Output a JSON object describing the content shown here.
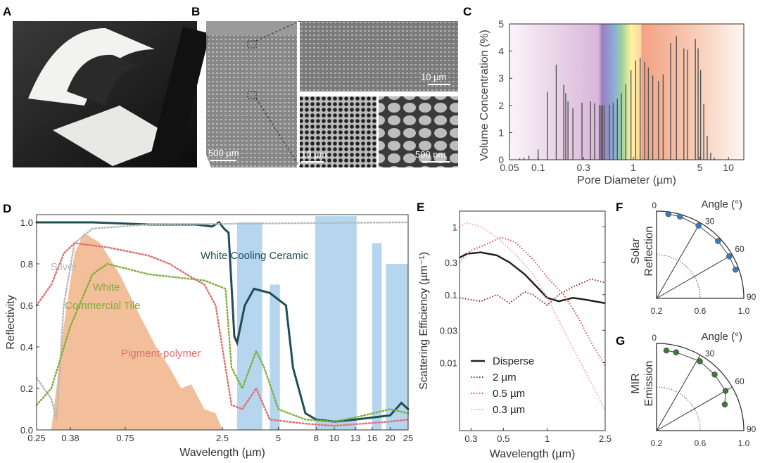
{
  "panels": {
    "A": {
      "label": "A"
    },
    "B": {
      "label": "B",
      "scalebars": [
        "500 µm",
        "10 µm",
        "10 µm",
        "500 nm"
      ]
    },
    "C": {
      "label": "C"
    },
    "D": {
      "label": "D"
    },
    "E": {
      "label": "E"
    },
    "F": {
      "label": "F"
    },
    "G": {
      "label": "G"
    }
  },
  "chart_data": [
    {
      "id": "C",
      "type": "bar",
      "xlabel": "Pore Diameter (µm)",
      "ylabel": "Volume Concentration (%)",
      "xscale": "log",
      "xlim": [
        0.05,
        14.5
      ],
      "ylim": [
        0,
        5
      ],
      "xticks": [
        "0.05",
        "0.1",
        "0.3",
        "1",
        "5",
        "10"
      ],
      "xtick_values": [
        0.05,
        0.1,
        0.3,
        1,
        5,
        10
      ],
      "yticks": [
        "0",
        "1",
        "2",
        "3",
        "4",
        "5"
      ],
      "background": "visible-spectrum gradient (violet to red) with UV and IR shading",
      "x": [
        0.064,
        0.071,
        0.08,
        0.1,
        0.125,
        0.155,
        0.186,
        0.195,
        0.206,
        0.232,
        0.289,
        0.356,
        0.392,
        0.441,
        0.459,
        0.475,
        0.494,
        0.56,
        0.615,
        0.68,
        0.75,
        0.835,
        0.945,
        1.06,
        1.18,
        1.32,
        1.44,
        1.6,
        1.84,
        2.06,
        2.47,
        2.84,
        3.4,
        3.72,
        4.49,
        4.8,
        5.1,
        5.5,
        5.98,
        6.5,
        7.1
      ],
      "values": [
        0.05,
        0.08,
        0.15,
        0.38,
        2.5,
        3.5,
        2.75,
        2.45,
        2.15,
        1.9,
        2.1,
        2.15,
        2.08,
        2.02,
        2.0,
        2.0,
        2.0,
        2.02,
        2.1,
        2.25,
        2.45,
        2.78,
        3.3,
        3.65,
        3.75,
        3.6,
        3.4,
        3.1,
        2.9,
        3.15,
        4.3,
        4.55,
        4.1,
        4.05,
        4.45,
        4.1,
        3.3,
        2.05,
        0.87,
        0.25,
        0.08
      ]
    },
    {
      "id": "D",
      "type": "line",
      "xlabel": "Wavelength (µm)",
      "ylabel": "Reflectivity",
      "xscale": "log",
      "xlim": [
        0.25,
        25
      ],
      "ylim": [
        0,
        1.05
      ],
      "xticks": [
        "0.25",
        "0.38",
        "0.75",
        "2.5",
        "5",
        "8",
        "10",
        "13",
        "16",
        "20",
        "25"
      ],
      "xtick_values": [
        0.25,
        0.38,
        0.75,
        2.5,
        5,
        8,
        10,
        13,
        16,
        20,
        25
      ],
      "yticks": [
        "0.0",
        "0.2",
        "0.4",
        "0.6",
        "0.8",
        "1.0"
      ],
      "series": [
        {
          "name": "White Cooling Ceramic",
          "color": "#1f4e55",
          "style": "solid",
          "x": [
            0.25,
            0.5,
            1,
            1.8,
            2.2,
            2.4,
            2.55,
            2.7,
            2.9,
            3.0,
            3.3,
            3.7,
            4.5,
            5.5,
            6,
            7,
            8,
            10,
            13,
            20,
            23,
            25
          ],
          "y": [
            1.0,
            1.0,
            0.99,
            0.99,
            0.98,
            1.0,
            0.97,
            0.95,
            0.45,
            0.42,
            0.6,
            0.68,
            0.66,
            0.6,
            0.3,
            0.08,
            0.05,
            0.04,
            0.05,
            0.07,
            0.13,
            0.1
          ]
        },
        {
          "name": "Silver",
          "color": "#b8b8b8",
          "style": "dotted",
          "x": [
            0.25,
            0.3,
            0.32,
            0.35,
            0.4,
            0.5,
            1,
            25
          ],
          "y": [
            0.25,
            0.15,
            0.05,
            0.6,
            0.9,
            0.97,
            0.99,
            1.0
          ]
        },
        {
          "name": "White Commercial Tile",
          "color": "#7fae3a",
          "style": "dotted",
          "x": [
            0.25,
            0.3,
            0.38,
            0.5,
            0.6,
            1,
            2,
            2.6,
            2.8,
            3.2,
            3.8,
            4.2,
            5,
            7,
            10,
            13,
            20,
            25
          ],
          "y": [
            0.12,
            0.2,
            0.5,
            0.75,
            0.8,
            0.75,
            0.72,
            0.68,
            0.3,
            0.2,
            0.38,
            0.3,
            0.1,
            0.05,
            0.04,
            0.06,
            0.1,
            0.08
          ]
        },
        {
          "name": "Pigment-polymer",
          "color": "#e07070",
          "style": "dotted",
          "x": [
            0.25,
            0.3,
            0.35,
            0.4,
            0.6,
            1,
            1.3,
            1.6,
            2,
            2.3,
            2.6,
            2.8,
            3.2,
            3.8,
            4.5,
            7,
            10,
            20,
            25
          ],
          "y": [
            0.6,
            0.7,
            0.85,
            0.9,
            0.88,
            0.84,
            0.8,
            0.75,
            0.7,
            0.6,
            0.3,
            0.12,
            0.1,
            0.2,
            0.05,
            0.03,
            0.02,
            0.04,
            0.05
          ]
        }
      ],
      "solar_spectrum": {
        "color": "#f0b488",
        "x": [
          0.3,
          0.35,
          0.4,
          0.45,
          0.55,
          0.7,
          0.9,
          1.1,
          1.3,
          1.5,
          1.7,
          2.0,
          2.3,
          2.5
        ],
        "y": [
          0,
          0.5,
          0.85,
          0.95,
          0.9,
          0.75,
          0.55,
          0.4,
          0.3,
          0.2,
          0.22,
          0.1,
          0.08,
          0
        ]
      },
      "atmospheric_window": {
        "color": "#9cc8e8",
        "bands": [
          [
            3.0,
            4.1,
            1.0
          ],
          [
            4.5,
            5.1,
            0.7
          ],
          [
            7.9,
            13.2,
            1.03
          ],
          [
            16,
            18,
            0.9
          ],
          [
            19,
            25,
            0.8
          ]
        ]
      }
    },
    {
      "id": "E",
      "type": "line",
      "xlabel": "Wavelength (µm)",
      "ylabel": "Scattering Efficiency (µm⁻¹)",
      "xscale": "log",
      "yscale": "log",
      "xlim": [
        0.25,
        2.5
      ],
      "ylim": [
        0.001,
        1.7
      ],
      "xticks": [
        "0.3",
        "0.5",
        "1",
        "2.5"
      ],
      "xtick_values": [
        0.3,
        0.5,
        1,
        2.5
      ],
      "yticks": [
        "0.01",
        "0.03",
        "0.1",
        "0.3",
        "1"
      ],
      "ytick_values": [
        0.01,
        0.03,
        0.1,
        0.3,
        1
      ],
      "legend": "bottom-left",
      "series": [
        {
          "name": "Disperse",
          "color": "#222222",
          "style": "solid",
          "x": [
            0.25,
            0.28,
            0.35,
            0.45,
            0.55,
            0.7,
            0.85,
            1.0,
            1.2,
            1.5,
            1.8,
            2.5
          ],
          "y": [
            0.35,
            0.4,
            0.42,
            0.38,
            0.3,
            0.2,
            0.13,
            0.09,
            0.08,
            0.09,
            0.085,
            0.075
          ]
        },
        {
          "name": "2 µm",
          "color": "#8b2a2a",
          "style": "dotted",
          "x": [
            0.25,
            0.35,
            0.45,
            0.55,
            0.7,
            0.8,
            1.0,
            1.2,
            1.5,
            2.0,
            2.5
          ],
          "y": [
            0.09,
            0.08,
            0.1,
            0.075,
            0.11,
            0.1,
            0.07,
            0.1,
            0.13,
            0.17,
            0.15
          ]
        },
        {
          "name": "0.5 µm",
          "color": "#d9534f",
          "style": "dotted",
          "x": [
            0.25,
            0.3,
            0.38,
            0.48,
            0.6,
            0.8,
            1.0,
            1.3,
            1.6,
            2.0,
            2.5
          ],
          "y": [
            0.3,
            0.45,
            0.55,
            0.7,
            0.6,
            0.33,
            0.18,
            0.1,
            0.05,
            0.02,
            0.009
          ]
        },
        {
          "name": "0.3 µm",
          "color": "#f4a6a6",
          "style": "dotted",
          "x": [
            0.25,
            0.28,
            0.35,
            0.45,
            0.6,
            0.8,
            1.0,
            1.3,
            1.7,
            2.5
          ],
          "y": [
            1.0,
            1.15,
            1.0,
            0.7,
            0.4,
            0.2,
            0.09,
            0.03,
            0.01,
            0.002
          ]
        }
      ]
    },
    {
      "id": "F",
      "type": "scatter",
      "coords": "polar-quarter",
      "ylabel": "Solar Reflection",
      "angle_label": "Angle (°)",
      "rlim": [
        0.2,
        1.0
      ],
      "rticks": [
        "0.2",
        "0.6",
        "1.0"
      ],
      "angle_ticks": [
        "0",
        "30",
        "60",
        "90"
      ],
      "color": "#3d7ab8",
      "angle": [
        8,
        16,
        30,
        47,
        60,
        70
      ],
      "r": [
        0.98,
        0.98,
        0.97,
        0.97,
        0.97,
        0.97
      ]
    },
    {
      "id": "G",
      "type": "scatter",
      "coords": "polar-quarter",
      "ylabel": "MIR Emission",
      "angle_label": "Angle (°)",
      "rlim": [
        0.2,
        1.0
      ],
      "rticks": [
        "0.2",
        "0.6",
        "1.0"
      ],
      "angle_ticks": [
        "0",
        "30",
        "60",
        "90"
      ],
      "color": "#3a7a3a",
      "angle": [
        7,
        14,
        32,
        46,
        60,
        69
      ],
      "r": [
        0.94,
        0.94,
        0.95,
        0.94,
        0.93,
        0.87
      ]
    }
  ]
}
